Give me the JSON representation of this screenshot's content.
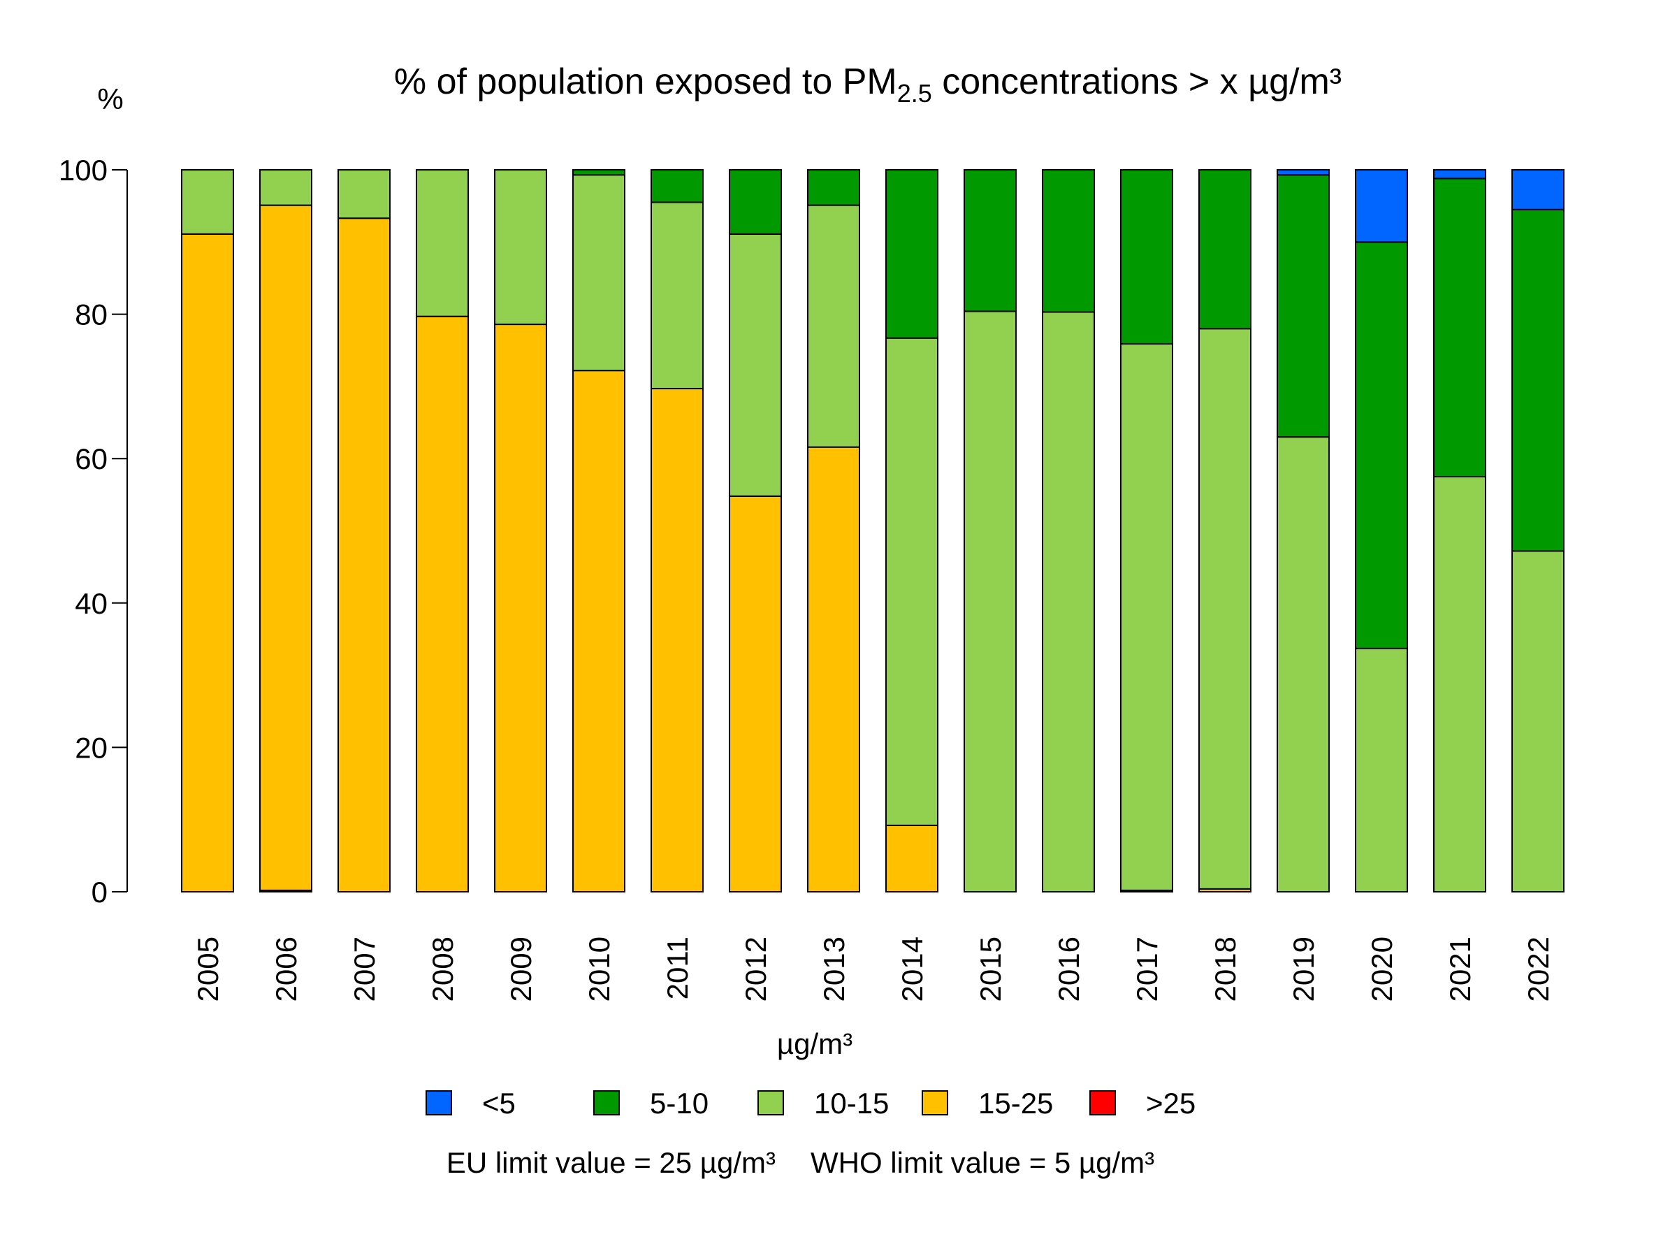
{
  "chart_data": {
    "type": "bar",
    "stacked": true,
    "title": {
      "prefix": "% of population exposed to PM",
      "subscript": "2.5",
      "suffix": " concentrations > x µg/m³"
    },
    "ylabel": "%",
    "xlabel": "µg/m³",
    "ylim": [
      0,
      100
    ],
    "yticks": [
      0,
      20,
      40,
      60,
      80,
      100
    ],
    "categories": [
      "2005",
      "2006",
      "2007",
      "2008",
      "2009",
      "2010",
      "2011",
      "2012",
      "2013",
      "2014",
      "2015",
      "2016",
      "2017",
      "2018",
      "2019",
      "2020",
      "2021",
      "2022"
    ],
    "series": [
      {
        "name": ">25",
        "color": "#ff0000",
        "values": [
          0,
          0.2,
          0,
          0,
          0,
          0,
          0,
          0,
          0,
          0,
          0,
          0,
          0,
          0,
          0,
          0,
          0,
          0
        ]
      },
      {
        "name": "15-25",
        "color": "#ffc000",
        "values": [
          91.1,
          94.9,
          93.3,
          79.7,
          78.6,
          72.2,
          69.7,
          54.8,
          61.6,
          9.2,
          0,
          0,
          0.2,
          0.4,
          0,
          0,
          0,
          0
        ]
      },
      {
        "name": "10-15",
        "color": "#92d050",
        "values": [
          8.9,
          4.9,
          6.7,
          20.3,
          21.4,
          27.1,
          25.8,
          36.3,
          33.5,
          67.5,
          80.4,
          80.3,
          75.7,
          77.6,
          63.0,
          33.7,
          57.5,
          47.2
        ]
      },
      {
        "name": "5-10",
        "color": "#009900",
        "values": [
          0,
          0,
          0,
          0,
          0,
          0.7,
          4.5,
          8.9,
          4.9,
          23.3,
          19.6,
          19.7,
          24.1,
          22.0,
          36.3,
          56.3,
          41.3,
          47.3
        ]
      },
      {
        "name": "<5",
        "color": "#0066ff",
        "values": [
          0,
          0,
          0,
          0,
          0,
          0,
          0,
          0,
          0,
          0,
          0,
          0,
          0,
          0,
          0.7,
          10.0,
          1.2,
          5.5
        ]
      }
    ],
    "legend": {
      "placement": "bottom",
      "order": [
        "<5",
        "5-10",
        "10-15",
        "15-25",
        ">25"
      ]
    },
    "notes": [
      "EU limit value = 25 µg/m³",
      "WHO limit value = 5 µg/m³"
    ],
    "grid": false
  }
}
